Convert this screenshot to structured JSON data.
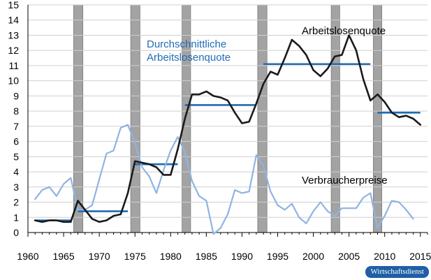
{
  "chart_data": {
    "type": "line",
    "x_range": [
      1960,
      2016
    ],
    "ylim": [
      0,
      15
    ],
    "x_ticks": [
      "1960",
      "1965",
      "1970",
      "1975",
      "1980",
      "1985",
      "1990",
      "1995",
      "2000",
      "2005",
      "2010",
      "2015"
    ],
    "y_ticks": [
      "0",
      "1",
      "2",
      "3",
      "4",
      "5",
      "6",
      "7",
      "8",
      "9",
      "10",
      "11",
      "12",
      "13",
      "14",
      "15"
    ],
    "grid": "horizontal",
    "recession_bands": [
      [
        1966.4,
        1967.7
      ],
      [
        1974.4,
        1975.7
      ],
      [
        1981.6,
        1982.8
      ],
      [
        1992.2,
        1993.5
      ],
      [
        2002.5,
        2003.7
      ],
      [
        2008.4,
        2009.6
      ]
    ],
    "series": [
      {
        "name": "Arbeitslosenquote",
        "color": "#1a1a1a",
        "points": [
          [
            1961,
            0.8
          ],
          [
            1962,
            0.7
          ],
          [
            1963,
            0.8
          ],
          [
            1964,
            0.8
          ],
          [
            1965,
            0.7
          ],
          [
            1966,
            0.7
          ],
          [
            1967,
            2.1
          ],
          [
            1968,
            1.5
          ],
          [
            1969,
            0.9
          ],
          [
            1970,
            0.7
          ],
          [
            1971,
            0.8
          ],
          [
            1972,
            1.1
          ],
          [
            1973,
            1.2
          ],
          [
            1974,
            2.6
          ],
          [
            1975,
            4.7
          ],
          [
            1976,
            4.6
          ],
          [
            1977,
            4.5
          ],
          [
            1978,
            4.3
          ],
          [
            1979,
            3.8
          ],
          [
            1980,
            3.8
          ],
          [
            1981,
            5.5
          ],
          [
            1982,
            7.5
          ],
          [
            1983,
            9.1
          ],
          [
            1984,
            9.1
          ],
          [
            1985,
            9.3
          ],
          [
            1986,
            9.0
          ],
          [
            1987,
            8.9
          ],
          [
            1988,
            8.7
          ],
          [
            1989,
            7.9
          ],
          [
            1990,
            7.2
          ],
          [
            1991,
            7.3
          ],
          [
            1992,
            8.5
          ],
          [
            1993,
            9.8
          ],
          [
            1994,
            10.6
          ],
          [
            1995,
            10.4
          ],
          [
            1996,
            11.5
          ],
          [
            1997,
            12.7
          ],
          [
            1998,
            12.3
          ],
          [
            1999,
            11.7
          ],
          [
            2000,
            10.7
          ],
          [
            2001,
            10.3
          ],
          [
            2002,
            10.8
          ],
          [
            2003,
            11.6
          ],
          [
            2004,
            11.7
          ],
          [
            2005,
            13.0
          ],
          [
            2006,
            12.0
          ],
          [
            2007,
            10.1
          ],
          [
            2008,
            8.7
          ],
          [
            2009,
            9.1
          ],
          [
            2010,
            8.6
          ],
          [
            2011,
            7.9
          ],
          [
            2012,
            7.6
          ],
          [
            2013,
            7.7
          ],
          [
            2014,
            7.5
          ],
          [
            2015,
            7.1
          ]
        ]
      },
      {
        "name": "Verbraucherpreise",
        "color": "#8fb4e3",
        "points": [
          [
            1961,
            2.2
          ],
          [
            1962,
            2.8
          ],
          [
            1963,
            3.0
          ],
          [
            1964,
            2.4
          ],
          [
            1965,
            3.2
          ],
          [
            1966,
            3.6
          ],
          [
            1967,
            1.5
          ],
          [
            1968,
            1.5
          ],
          [
            1969,
            1.8
          ],
          [
            1970,
            3.5
          ],
          [
            1971,
            5.2
          ],
          [
            1972,
            5.4
          ],
          [
            1973,
            6.9
          ],
          [
            1974,
            7.1
          ],
          [
            1975,
            5.9
          ],
          [
            1976,
            4.3
          ],
          [
            1977,
            3.7
          ],
          [
            1978,
            2.6
          ],
          [
            1979,
            4.1
          ],
          [
            1980,
            5.4
          ],
          [
            1981,
            6.3
          ],
          [
            1982,
            5.3
          ],
          [
            1983,
            3.4
          ],
          [
            1984,
            2.4
          ],
          [
            1985,
            2.1
          ],
          [
            1986,
            -0.1
          ],
          [
            1987,
            0.3
          ],
          [
            1988,
            1.2
          ],
          [
            1989,
            2.8
          ],
          [
            1990,
            2.6
          ],
          [
            1991,
            2.7
          ],
          [
            1992,
            5.1
          ],
          [
            1993,
            4.4
          ],
          [
            1994,
            2.7
          ],
          [
            1995,
            1.8
          ],
          [
            1996,
            1.5
          ],
          [
            1997,
            1.9
          ],
          [
            1998,
            1.0
          ],
          [
            1999,
            0.6
          ],
          [
            2000,
            1.4
          ],
          [
            2001,
            2.0
          ],
          [
            2002,
            1.4
          ],
          [
            2003,
            1.1
          ],
          [
            2004,
            1.6
          ],
          [
            2005,
            1.6
          ],
          [
            2006,
            1.6
          ],
          [
            2007,
            2.3
          ],
          [
            2008,
            2.6
          ],
          [
            2009,
            0.3
          ],
          [
            2010,
            1.1
          ],
          [
            2011,
            2.1
          ],
          [
            2012,
            2.0
          ],
          [
            2013,
            1.5
          ],
          [
            2014,
            0.9
          ]
        ]
      }
    ],
    "average_segments": {
      "name": "Durchschnittliche Arbeitslosenquote",
      "color": "#1f6cb3",
      "segments": [
        [
          1961,
          1966,
          0.8
        ],
        [
          1967,
          1974,
          1.4
        ],
        [
          1975,
          1981,
          4.5
        ],
        [
          1982,
          1992,
          8.4
        ],
        [
          1993,
          2008,
          11.1
        ],
        [
          2009,
          2015,
          7.9
        ]
      ]
    },
    "annotations": {
      "unemployment": "Arbeitslosenquote",
      "average_line1": "Durchschnittliche",
      "average_line2": "Arbeitslosenquote",
      "inflation": "Verbraucherpreise"
    }
  },
  "source_label": "Wirtschaftsdienst"
}
